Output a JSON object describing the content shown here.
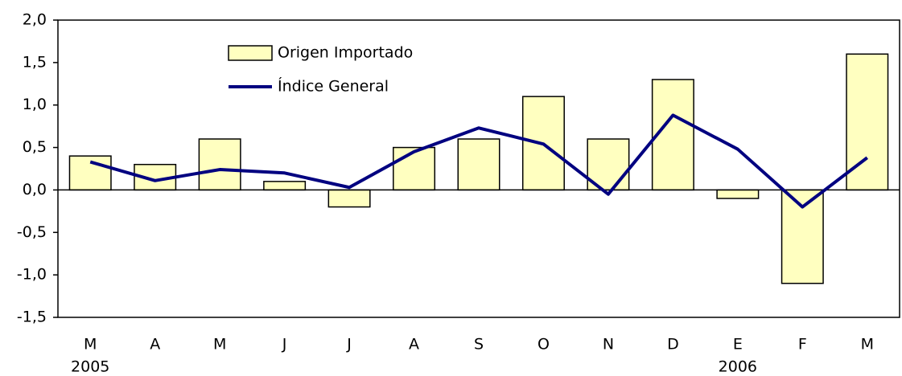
{
  "chart_data": {
    "type": "bar",
    "categories": [
      "M",
      "A",
      "M",
      "J",
      "J",
      "A",
      "S",
      "O",
      "N",
      "D",
      "E",
      "F",
      "M"
    ],
    "years": [
      "2005",
      null,
      null,
      null,
      null,
      null,
      null,
      null,
      null,
      null,
      "2006",
      null,
      null
    ],
    "series": [
      {
        "name": "Origen Importado",
        "type": "bar",
        "color": "#ffffc0",
        "values": [
          0.4,
          0.3,
          0.6,
          0.1,
          -0.2,
          0.5,
          0.6,
          1.1,
          0.6,
          1.3,
          -0.1,
          -1.1,
          1.6
        ]
      },
      {
        "name": "Índice General",
        "type": "line",
        "color": "#000080",
        "values": [
          0.33,
          0.11,
          0.24,
          0.2,
          0.03,
          0.45,
          0.73,
          0.54,
          -0.05,
          0.88,
          0.48,
          -0.2,
          0.38
        ]
      }
    ],
    "ylim": [
      -1.5,
      2
    ],
    "yticks": [
      {
        "value": -1.5,
        "label": "-1,5"
      },
      {
        "value": -1,
        "label": "-1,0"
      },
      {
        "value": -0.5,
        "label": "-0,5"
      },
      {
        "value": 0,
        "label": "0,0"
      },
      {
        "value": 0.5,
        "label": "0,5"
      },
      {
        "value": 1,
        "label": "1,0"
      },
      {
        "value": 1.5,
        "label": "1,5"
      },
      {
        "value": 2,
        "label": "2,0"
      }
    ],
    "grid": false,
    "legend": "top-left"
  }
}
